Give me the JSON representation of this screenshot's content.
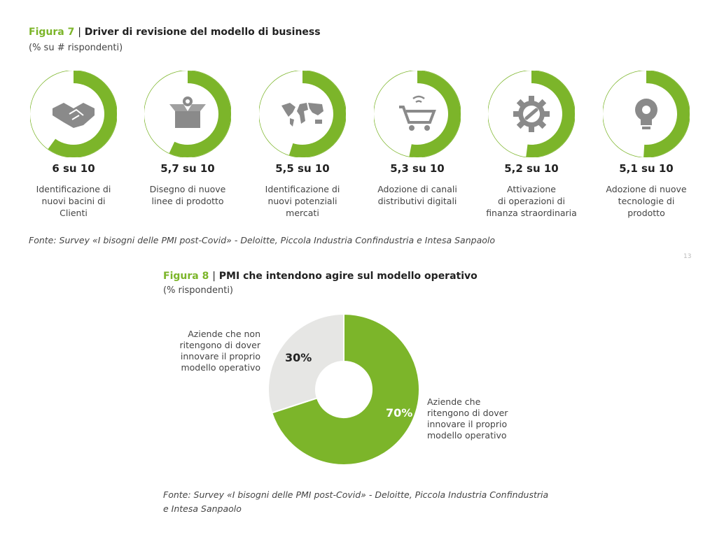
{
  "figure7": {
    "number": "Figura 7",
    "separator": "|",
    "title": "Driver di revisione del modello di business",
    "subtitle": "(% su # rispondenti)",
    "source": "Fonte: Survey «I bisogni delle PMI post-Covid» - Deloitte, Piccola Industria Confindustria e Intesa Sanpaolo"
  },
  "figure8": {
    "number": "Figura 8",
    "separator": "|",
    "title": "PMI che intendono agire sul modello operativo",
    "subtitle": "(% rispondenti)",
    "source_line1": "Fonte: Survey «I bisogni delle PMI post-Covid» - Deloitte, Piccola Industria Confindustria",
    "source_line2": "e Intesa Sanpaolo"
  },
  "page_mark": "13",
  "colors": {
    "accent": "#7cb52a",
    "grey": "#e6e6e4",
    "dark": "#222222"
  },
  "chart_data": [
    {
      "type": "pie",
      "chart_style": "donut-gauge",
      "scale_max": 10,
      "items": [
        {
          "value": 6.0,
          "value_label": "6 su 10",
          "label": "Identificazione di\nnuovi bacini di\nClienti",
          "icon": "handshake-icon"
        },
        {
          "value": 5.7,
          "value_label": "5,7 su 10",
          "label": "Disegno di nuove\nlinee di prodotto",
          "icon": "box-icon"
        },
        {
          "value": 5.5,
          "value_label": "5,5 su 10",
          "label": "Identificazione di\nnuovi potenziali\nmercati",
          "icon": "world-map-icon"
        },
        {
          "value": 5.3,
          "value_label": "5,3 su 10",
          "label": "Adozione di canali\ndistributivi digitali",
          "icon": "shopping-cart-icon"
        },
        {
          "value": 5.2,
          "value_label": "5,2 su 10",
          "label": "Attivazione\ndi operazioni di\nfinanza straordinaria",
          "icon": "gear-chain-icon"
        },
        {
          "value": 5.1,
          "value_label": "5,1 su 10",
          "label": "Adozione di nuove\ntecnologie di\nprodotto",
          "icon": "lightbulb-gear-icon"
        }
      ]
    },
    {
      "type": "pie",
      "chart_style": "donut",
      "slices": [
        {
          "label": "Aziende che\nritengono di dover\ninnovare il proprio\nmodello operativo",
          "value": 70,
          "value_label": "70%",
          "color": "#7cb52a"
        },
        {
          "label": "Aziende che non\nritengono di dover\ninnovare il proprio\nmodello operativo",
          "value": 30,
          "value_label": "30%",
          "color": "#e6e6e4"
        }
      ]
    }
  ]
}
